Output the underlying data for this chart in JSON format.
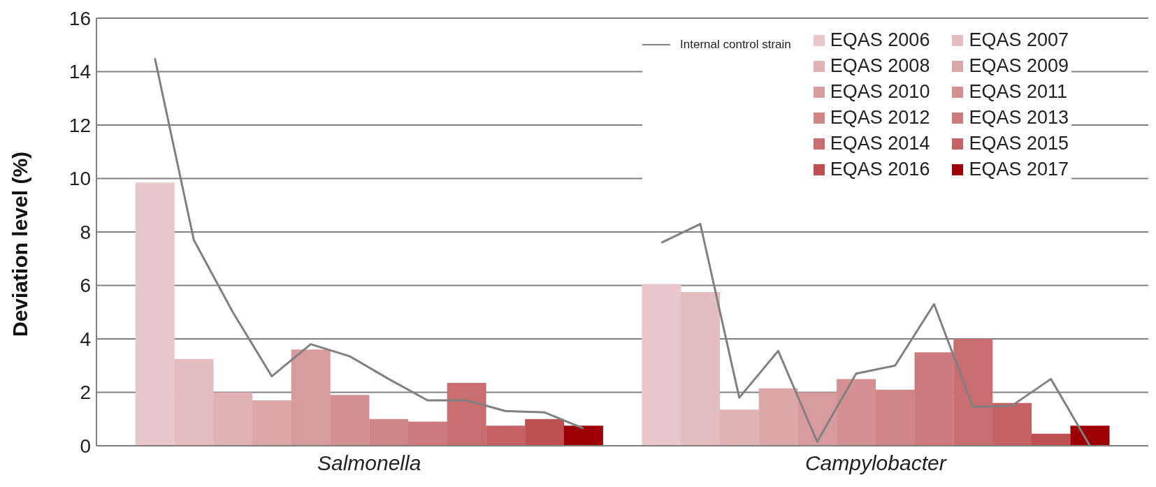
{
  "chart_data": {
    "type": "bar",
    "ylabel": "Deviation level (%)",
    "categories": [
      null,
      null,
      null,
      null,
      null,
      null,
      null,
      null,
      null,
      null,
      null,
      null,
      null,
      null,
      null,
      null,
      null,
      null,
      null,
      null,
      null,
      null,
      null,
      null,
      null,
      null,
      null
    ],
    "ylim": [
      0,
      16
    ],
    "yticks": [
      0,
      2,
      4,
      6,
      8,
      10,
      12,
      14,
      16
    ],
    "grid": "y",
    "legend": "top right",
    "stacked": true,
    "annotations": [
      "Salmonella",
      "Campylobacter"
    ],
    "series": [
      {
        "name": "EQAS 2006",
        "color": "#e8c8ca",
        "values": [
          null,
          9.85,
          null,
          null,
          null,
          null,
          null,
          null,
          null,
          null,
          null,
          null,
          null,
          null,
          6.05,
          null,
          null,
          null,
          null,
          null,
          null,
          null,
          null,
          null,
          null,
          null,
          null
        ]
      },
      {
        "name": "EQAS 2007",
        "color": "#e4bdbf",
        "values": [
          null,
          null,
          3.25,
          null,
          null,
          null,
          null,
          null,
          null,
          null,
          null,
          null,
          null,
          null,
          null,
          5.75,
          null,
          null,
          null,
          null,
          null,
          null,
          null,
          null,
          null,
          null,
          null
        ]
      },
      {
        "name": "EQAS 2008",
        "color": "#e0b2b4",
        "values": [
          null,
          null,
          null,
          2.0,
          null,
          null,
          null,
          null,
          null,
          null,
          null,
          null,
          null,
          null,
          null,
          null,
          1.35,
          null,
          null,
          null,
          null,
          null,
          null,
          null,
          null,
          null,
          null
        ]
      },
      {
        "name": "EQAS 2009",
        "color": "#dca7a9",
        "values": [
          null,
          null,
          null,
          null,
          1.7,
          null,
          null,
          null,
          null,
          null,
          null,
          null,
          null,
          null,
          null,
          null,
          null,
          2.15,
          null,
          null,
          null,
          null,
          null,
          null,
          null,
          null,
          null
        ]
      },
      {
        "name": "EQAS 2010",
        "color": "#d89b9d",
        "values": [
          null,
          null,
          null,
          null,
          null,
          3.6,
          null,
          null,
          null,
          null,
          null,
          null,
          null,
          null,
          null,
          null,
          null,
          null,
          2.0,
          null,
          null,
          null,
          null,
          null,
          null,
          null,
          null
        ]
      },
      {
        "name": "EQAS 2011",
        "color": "#d49092",
        "values": [
          null,
          null,
          null,
          null,
          null,
          null,
          1.9,
          null,
          null,
          null,
          null,
          null,
          null,
          null,
          null,
          null,
          null,
          null,
          null,
          2.5,
          null,
          null,
          null,
          null,
          null,
          null,
          null
        ]
      },
      {
        "name": "EQAS 2012",
        "color": "#d08587",
        "values": [
          null,
          null,
          null,
          null,
          null,
          null,
          null,
          1.0,
          null,
          null,
          null,
          null,
          null,
          null,
          null,
          null,
          null,
          null,
          null,
          null,
          2.1,
          null,
          null,
          null,
          null,
          null,
          null
        ]
      },
      {
        "name": "EQAS 2013",
        "color": "#cc7a7c",
        "values": [
          null,
          null,
          null,
          null,
          null,
          null,
          null,
          null,
          0.9,
          null,
          null,
          null,
          null,
          null,
          null,
          null,
          null,
          null,
          null,
          null,
          null,
          3.5,
          null,
          null,
          null,
          null,
          null
        ]
      },
      {
        "name": "EQAS 2014",
        "color": "#c86e70",
        "values": [
          null,
          null,
          null,
          null,
          null,
          null,
          null,
          null,
          null,
          2.35,
          null,
          null,
          null,
          null,
          null,
          null,
          null,
          null,
          null,
          null,
          null,
          null,
          4.0,
          null,
          null,
          null,
          null
        ]
      },
      {
        "name": "EQAS 2015",
        "color": "#c46265",
        "values": [
          null,
          null,
          null,
          null,
          null,
          null,
          null,
          null,
          null,
          null,
          0.75,
          null,
          null,
          null,
          null,
          null,
          null,
          null,
          null,
          null,
          null,
          null,
          null,
          1.6,
          null,
          null,
          null
        ]
      },
      {
        "name": "EQAS 2016",
        "color": "#be5054",
        "values": [
          null,
          null,
          null,
          null,
          null,
          null,
          null,
          null,
          null,
          null,
          null,
          1.0,
          null,
          null,
          null,
          null,
          null,
          null,
          null,
          null,
          null,
          null,
          null,
          null,
          0.45,
          null,
          null
        ]
      },
      {
        "name": "EQAS 2017",
        "color": "#9c0006",
        "values": [
          null,
          null,
          null,
          null,
          null,
          null,
          null,
          null,
          null,
          null,
          null,
          null,
          0.75,
          null,
          null,
          null,
          null,
          null,
          null,
          null,
          null,
          null,
          null,
          null,
          null,
          0.75,
          null
        ]
      },
      {
        "name": "Internal control strain",
        "type": "line",
        "color": "#808080",
        "values": [
          null,
          14.5,
          7.7,
          5.0,
          2.6,
          3.8,
          3.35,
          2.5,
          1.7,
          1.7,
          1.3,
          1.25,
          0.65,
          null,
          7.6,
          8.3,
          1.8,
          3.55,
          0.15,
          2.7,
          3.0,
          5.3,
          1.45,
          1.5,
          2.5,
          0.0,
          null
        ]
      }
    ]
  }
}
